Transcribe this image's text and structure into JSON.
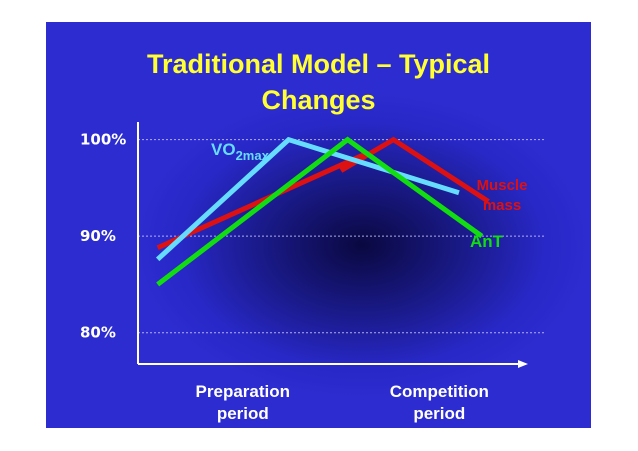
{
  "slide": {
    "title_line1": "Traditional Model – Typical",
    "title_line2": "Changes"
  },
  "chart_data": {
    "type": "line",
    "x": [
      0,
      1,
      2,
      3,
      4,
      5,
      6
    ],
    "x_categories": [
      {
        "label_line1": "Preparation",
        "label_line2": "period",
        "x": 1.6
      },
      {
        "label_line1": "Competition",
        "label_line2": "period",
        "x": 4.6
      }
    ],
    "ylim": [
      78,
      101
    ],
    "yticks": [
      {
        "value": 100,
        "label": "100%"
      },
      {
        "value": 90,
        "label": "90%"
      },
      {
        "value": 80,
        "label": "80%"
      }
    ],
    "grid": true,
    "series": [
      {
        "name": "Muscle mass",
        "label_lines": [
          "Muscle",
          "mass"
        ],
        "color": "#dd1111",
        "points": [
          [
            0.3,
            88.8
          ],
          [
            3.5,
            98.6
          ],
          [
            3.1,
            96.8
          ],
          [
            3.9,
            100
          ],
          [
            5.35,
            93.6
          ]
        ]
      },
      {
        "name": "VO2max",
        "label_main": "VO",
        "label_sub": "2max",
        "color": "#66ddff",
        "points": [
          [
            0.3,
            87.6
          ],
          [
            2.3,
            100
          ],
          [
            4.9,
            94.5
          ]
        ]
      },
      {
        "name": "AnT",
        "label_lines": [
          "AnT"
        ],
        "color": "#11dd11",
        "points": [
          [
            0.3,
            85
          ],
          [
            3.2,
            100
          ],
          [
            5.25,
            90
          ]
        ]
      }
    ]
  }
}
